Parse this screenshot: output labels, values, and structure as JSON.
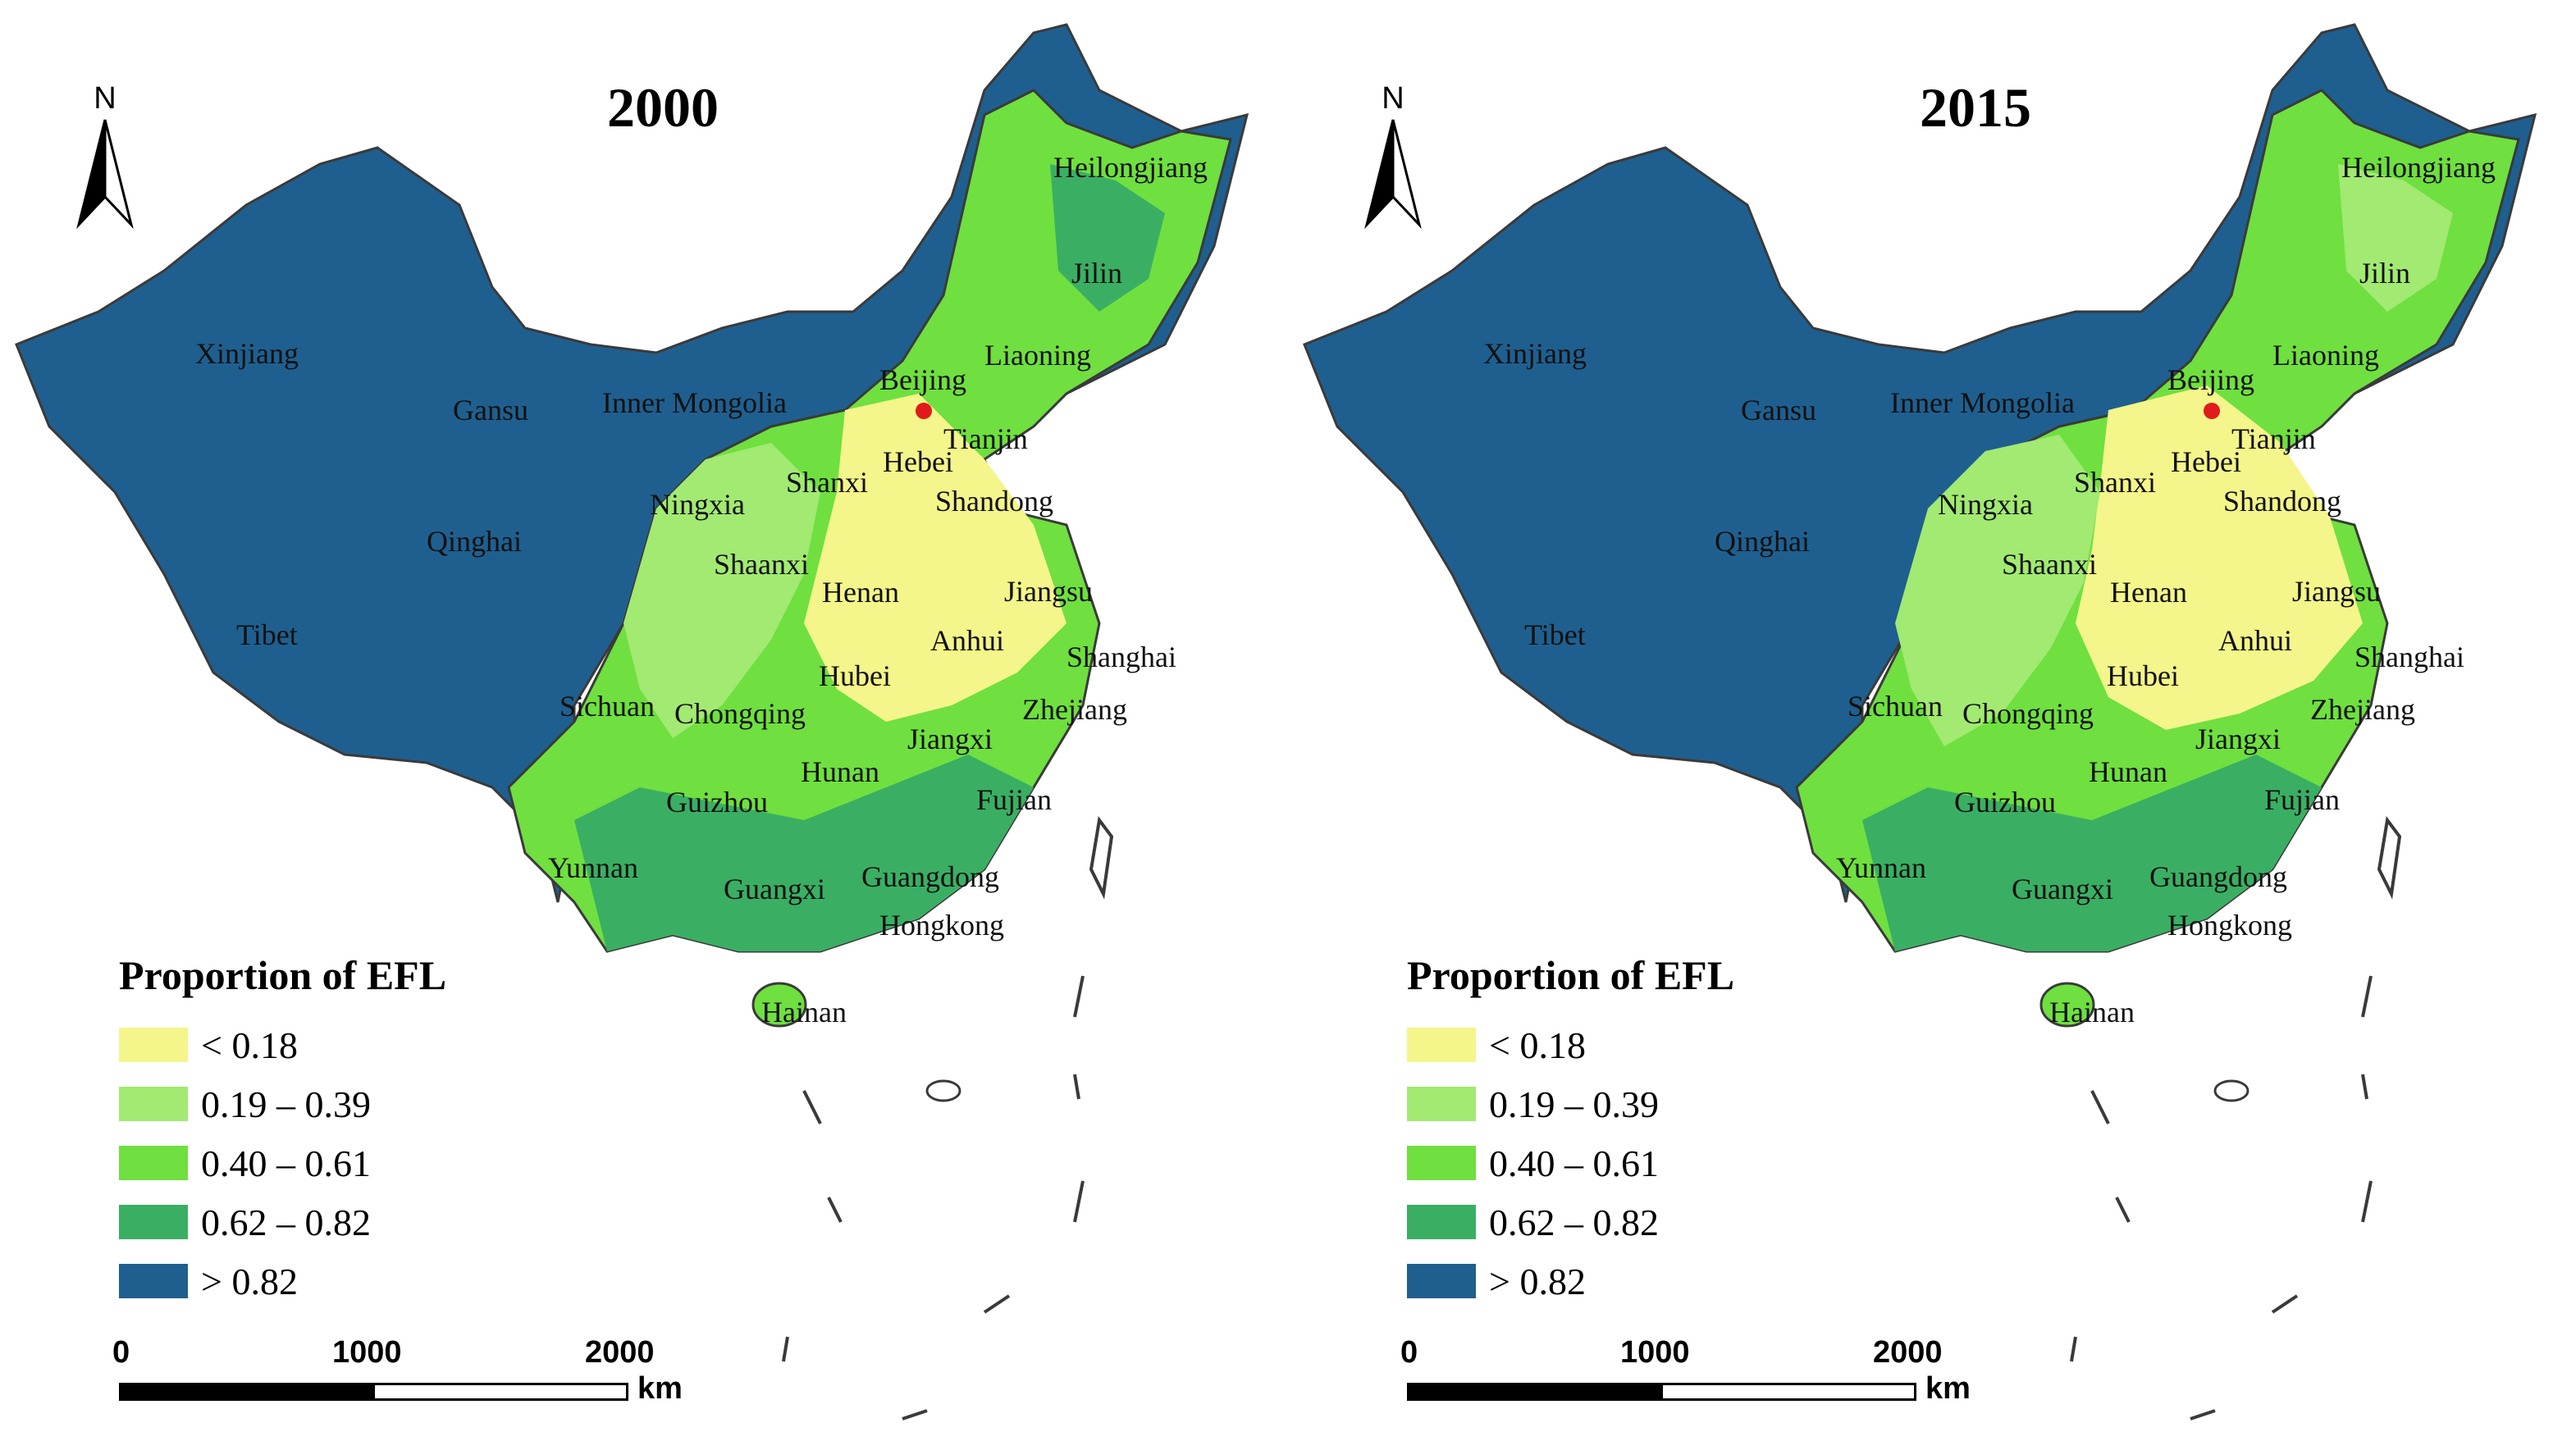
{
  "colors": {
    "c1": "#f4f58a",
    "c2": "#a2ea72",
    "c3": "#6fe03f",
    "c4": "#3aaf63",
    "c5": "#1f5f8f",
    "border": "#3a3a3a",
    "capital": "#e11b1b"
  },
  "north_label": "N",
  "legend": {
    "title": "Proportion of EFL",
    "items": [
      {
        "label": "< 0.18",
        "color": "#f4f58a"
      },
      {
        "label": "0.19 – 0.39",
        "color": "#a2ea72"
      },
      {
        "label": "0.40 – 0.61",
        "color": "#6fe03f"
      },
      {
        "label": "0.62 – 0.82",
        "color": "#3aaf63"
      },
      {
        "label": "> 0.82",
        "color": "#1f5f8f"
      }
    ]
  },
  "scale": {
    "ticks": [
      "0",
      "1000",
      "2000"
    ],
    "unit": "km"
  },
  "provinces": [
    "Heilongjiang",
    "Jilin",
    "Liaoning",
    "Xinjiang",
    "Inner Mongolia",
    "Gansu",
    "Beijing",
    "Tianjin",
    "Hebei",
    "Shanxi",
    "Shandong",
    "Ningxia",
    "Qinghai",
    "Shaanxi",
    "Henan",
    "Jiangsu",
    "Anhui",
    "Shanghai",
    "Tibet",
    "Hubei",
    "Sichuan",
    "Chongqing",
    "Zhejiang",
    "Jiangxi",
    "Hunan",
    "Guizhou",
    "Fujian",
    "Yunnan",
    "Guangxi",
    "Guangdong",
    "Hongkong",
    "Hainan"
  ],
  "maps": [
    {
      "title": "2000"
    },
    {
      "title": "2015"
    }
  ]
}
